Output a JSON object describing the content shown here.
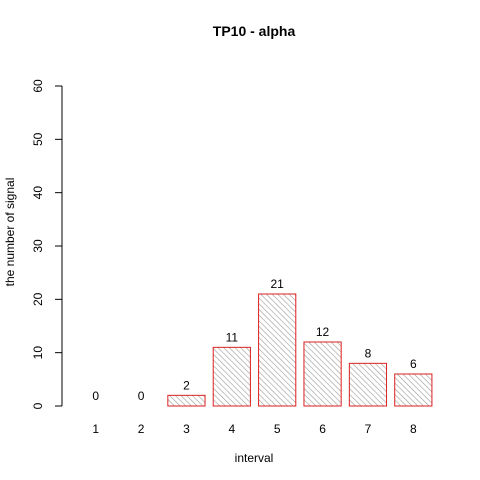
{
  "chart_data": {
    "type": "bar",
    "title": "TP10  -  alpha",
    "xlabel": "interval",
    "ylabel": "the number of signal",
    "categories": [
      "1",
      "2",
      "3",
      "4",
      "5",
      "6",
      "7",
      "8"
    ],
    "values": [
      0,
      0,
      2,
      11,
      21,
      12,
      8,
      6
    ],
    "data_labels": [
      "0",
      "0",
      "2",
      "11",
      "21",
      "12",
      "8",
      "6"
    ],
    "ylim": [
      0,
      60
    ],
    "yticks": [
      "0",
      "10",
      "20",
      "30",
      "40",
      "50",
      "60"
    ],
    "grid": false,
    "legend": "none",
    "colors": {
      "bar_border": "#dd1f1f",
      "bar_hatch": "#9a9a9a",
      "axis": "#000000"
    }
  }
}
